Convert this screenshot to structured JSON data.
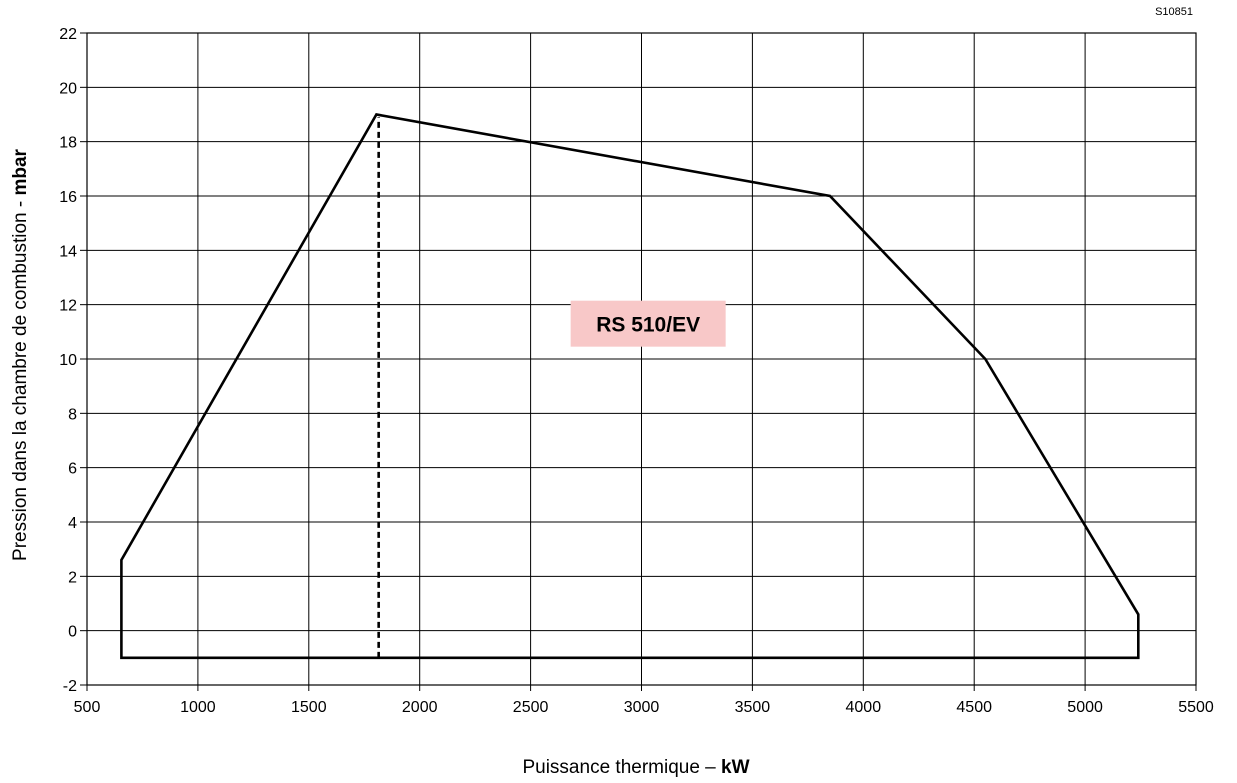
{
  "reference_code": "S10851",
  "chart_data": {
    "type": "line",
    "xlabel_prefix": "Puissance thermique – ",
    "xlabel_unit": "kW",
    "ylabel_prefix": "Pression dans la chambre de combustion - ",
    "ylabel_unit": "mbar",
    "xlim": [
      500,
      5500
    ],
    "ylim": [
      -2,
      22
    ],
    "x_ticks": [
      500,
      1000,
      1500,
      2000,
      2500,
      3000,
      3500,
      4000,
      4500,
      5000,
      5500
    ],
    "y_ticks": [
      -2,
      0,
      2,
      4,
      6,
      8,
      10,
      12,
      14,
      16,
      18,
      20,
      22
    ],
    "grid": true,
    "series": [
      {
        "name": "RS 510/EV",
        "style": "solid",
        "closed": true,
        "points": [
          [
            655,
            -1
          ],
          [
            655,
            2.6
          ],
          [
            1805,
            19
          ],
          [
            3850,
            16
          ],
          [
            4550,
            10
          ],
          [
            5240,
            0.6
          ],
          [
            5240,
            -1
          ]
        ]
      }
    ],
    "divider_line": {
      "style": "dashed",
      "x": 1815,
      "y_range": [
        -1,
        18.9
      ]
    },
    "annotations": [
      {
        "text": "RS 510/EV",
        "x": 3030,
        "y": 11.3,
        "background": "#f8c8c8"
      }
    ]
  }
}
